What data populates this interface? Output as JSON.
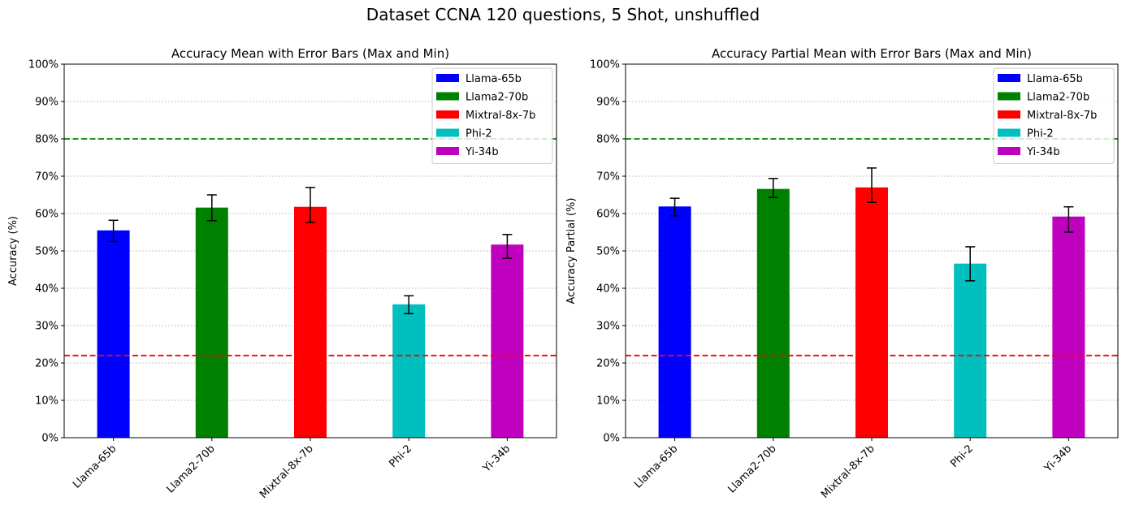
{
  "figure": {
    "suptitle": "Dataset CCNA 120 questions, 5 Shot, unshuffled"
  },
  "chart_data": [
    {
      "type": "bar",
      "title": "Accuracy Mean with Error Bars (Max and Min)",
      "xlabel": "",
      "ylabel": "Accuracy (%)",
      "ylim": [
        0,
        100
      ],
      "yticks": [
        "0%",
        "10%",
        "20%",
        "30%",
        "40%",
        "50%",
        "60%",
        "70%",
        "80%",
        "90%",
        "100%"
      ],
      "categories": [
        "Llama-65b",
        "Llama2-70b",
        "Mixtral-8x-7b",
        "Phi-2",
        "Yi-34b"
      ],
      "values": [
        55.5,
        61.6,
        61.8,
        35.7,
        51.7
      ],
      "error_min": [
        52.5,
        58.1,
        57.6,
        33.2,
        48.0
      ],
      "error_max": [
        58.2,
        65.0,
        67.0,
        38.0,
        54.4
      ],
      "colors": [
        "#0000ff",
        "#008000",
        "#ff0000",
        "#00bfbf",
        "#bf00bf"
      ],
      "reference_lines": [
        {
          "value": 80,
          "color": "#008000",
          "style": "dashed"
        },
        {
          "value": 22,
          "color": "#ff0000",
          "style": "dashed"
        }
      ],
      "grid": "y-dotted",
      "legend": {
        "placement": "top-right",
        "entries": [
          "Llama-65b",
          "Llama2-70b",
          "Mixtral-8x-7b",
          "Phi-2",
          "Yi-34b"
        ]
      }
    },
    {
      "type": "bar",
      "title": "Accuracy Partial Mean with Error Bars (Max and Min)",
      "xlabel": "",
      "ylabel": "Accuracy Partial (%)",
      "ylim": [
        0,
        100
      ],
      "yticks": [
        "0%",
        "10%",
        "20%",
        "30%",
        "40%",
        "50%",
        "60%",
        "70%",
        "80%",
        "90%",
        "100%"
      ],
      "categories": [
        "Llama-65b",
        "Llama2-70b",
        "Mixtral-8x-7b",
        "Phi-2",
        "Yi-34b"
      ],
      "values": [
        61.9,
        66.6,
        67.0,
        46.6,
        59.2
      ],
      "error_min": [
        59.4,
        64.3,
        63.0,
        42.0,
        55.0
      ],
      "error_max": [
        64.1,
        69.4,
        72.2,
        51.1,
        61.8
      ],
      "colors": [
        "#0000ff",
        "#008000",
        "#ff0000",
        "#00bfbf",
        "#bf00bf"
      ],
      "reference_lines": [
        {
          "value": 80,
          "color": "#008000",
          "style": "dashed"
        },
        {
          "value": 22,
          "color": "#ff0000",
          "style": "dashed"
        }
      ],
      "grid": "y-dotted",
      "legend": {
        "placement": "top-right",
        "entries": [
          "Llama-65b",
          "Llama2-70b",
          "Mixtral-8x-7b",
          "Phi-2",
          "Yi-34b"
        ]
      }
    }
  ]
}
